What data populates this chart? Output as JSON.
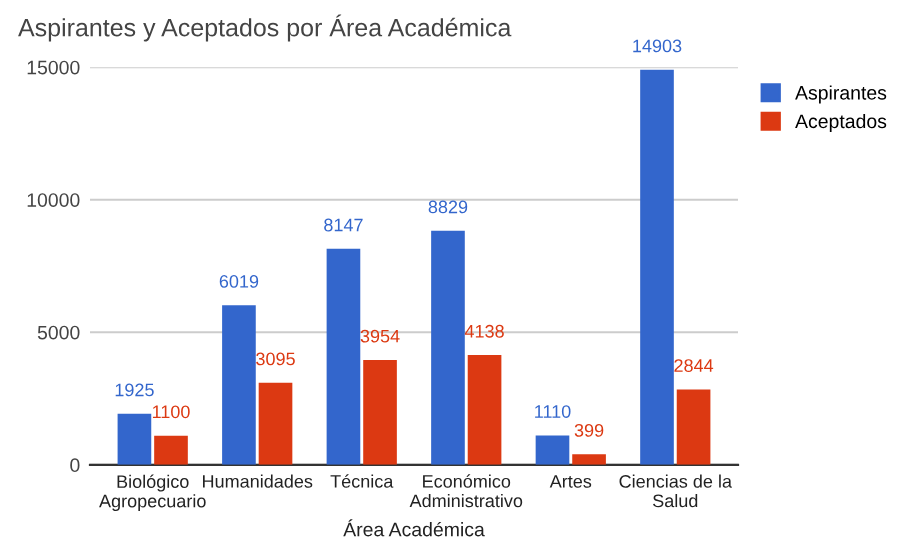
{
  "chart_data": {
    "type": "bar",
    "title": "Aspirantes y Aceptados por Área Académica",
    "xlabel": "Área Académica",
    "categories": [
      "Biológico\nAgropecuario",
      "Humanidades",
      "Técnica",
      "Económico\nAdministrativo",
      "Artes",
      "Ciencias de la\nSalud"
    ],
    "series": [
      {
        "name": "Aspirantes",
        "color": "#3366cc",
        "values": [
          1925,
          6019,
          8147,
          8829,
          1110,
          14903
        ]
      },
      {
        "name": "Aceptados",
        "color": "#dc3912",
        "values": [
          1100,
          3095,
          3954,
          4138,
          399,
          2844
        ]
      }
    ],
    "ylim": [
      0,
      15000
    ],
    "yticks": [
      0,
      5000,
      10000,
      15000
    ],
    "grid": "y",
    "legend": "top right",
    "data_labels": true
  }
}
